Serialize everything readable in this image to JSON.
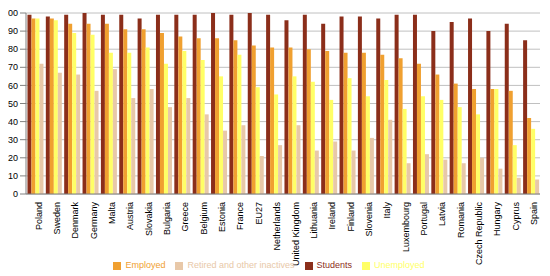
{
  "chart_data": {
    "type": "bar",
    "categories": [
      "Poland",
      "Sweden",
      "Denmark",
      "Germany",
      "Malta",
      "Austria",
      "Slovakia",
      "Bulgaria",
      "Greece",
      "Belgium",
      "Estonia",
      "France",
      "EU27",
      "Netherlands",
      "United Kingdom",
      "Lithuania",
      "Ireland",
      "Finland",
      "Slovenia",
      "Italy",
      "Luxembourg",
      "Portugal",
      "Latvia",
      "Romania",
      "Czech Republic",
      "Hungary",
      "Cyprus",
      "Spain"
    ],
    "series": [
      {
        "name": "Students",
        "color": "#8b2e1a",
        "values": [
          99,
          98,
          99,
          100,
          99,
          99,
          97,
          99,
          99,
          99,
          100,
          99,
          100,
          99,
          96,
          99,
          94,
          98,
          98,
          97,
          99,
          99,
          90,
          95,
          97,
          90,
          94,
          85
        ]
      },
      {
        "name": "Employed",
        "color": "#f0a030",
        "values": [
          97,
          97,
          94,
          94,
          94,
          91,
          91,
          89,
          87,
          86,
          86,
          85,
          82,
          81,
          81,
          80,
          79,
          78,
          78,
          77,
          75,
          72,
          66,
          61,
          58,
          58,
          57,
          42
        ]
      },
      {
        "name": "Unemployed",
        "color": "#ffff66",
        "values": [
          97,
          96,
          89,
          88,
          78,
          78,
          81,
          72,
          79,
          74,
          65,
          77,
          59,
          55,
          65,
          62,
          52,
          64,
          54,
          63,
          47,
          54,
          52,
          48,
          44,
          58,
          27,
          36
        ]
      },
      {
        "name": "Retired and other inactives",
        "color": "#e8c8a8",
        "values": [
          72,
          67,
          66,
          57,
          69,
          53,
          58,
          48,
          53,
          44,
          35,
          38,
          21,
          27,
          38,
          24,
          29,
          24,
          31,
          41,
          17,
          22,
          19,
          17,
          20,
          14,
          9,
          8
        ]
      }
    ],
    "ylim": [
      0,
      100
    ],
    "yticks": [
      0,
      10,
      20,
      30,
      40,
      50,
      60,
      70,
      80,
      90,
      100
    ],
    "grid": true,
    "legend": "bottom"
  }
}
